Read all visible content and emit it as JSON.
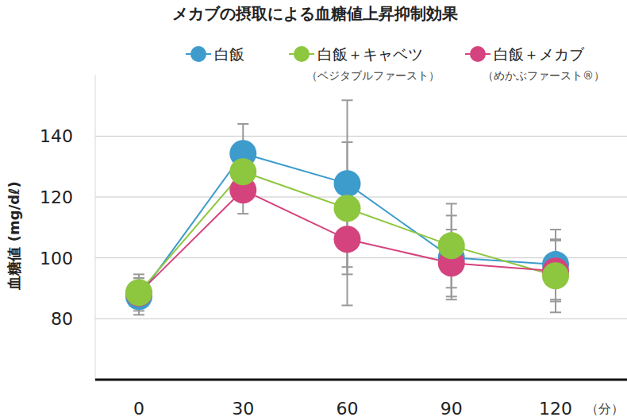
{
  "chart_data": {
    "type": "line",
    "title": "メカブの摂取による血糖値上昇抑制効果",
    "y_label": "血糖値 (mg/dℓ)",
    "x_label": "（分）",
    "categories": [
      "0",
      "30",
      "60",
      "90",
      "120"
    ],
    "series": [
      {
        "name": "白飯",
        "color": "#3d9ccc",
        "marker": "circle",
        "values": [
          87.3,
          134.3,
          124.4,
          100.1,
          97.8
        ],
        "errors": [
          6,
          9.7,
          27.4,
          13.8,
          11.5
        ]
      },
      {
        "name": "白飯＋キャベツ",
        "note": "（ベジタブルファースト）",
        "color": "#8dc63f",
        "marker": "circle",
        "values": [
          88.6,
          128.3,
          116.3,
          104.0,
          94.1
        ],
        "errors": [
          6,
          8,
          21.7,
          13.8,
          12
        ]
      },
      {
        "name": "白飯＋メカブ",
        "note": "（めかぶファースト®）",
        "color": "#d5437e",
        "marker": "circle",
        "values": [
          88.4,
          122.3,
          106.1,
          98.3,
          95.7
        ],
        "errors": [
          5,
          7.8,
          21.7,
          11,
          10
        ]
      }
    ],
    "ylim": [
      60,
      160
    ],
    "yticks": [
      80,
      100,
      120,
      140
    ],
    "grid": true,
    "legend": "top"
  }
}
